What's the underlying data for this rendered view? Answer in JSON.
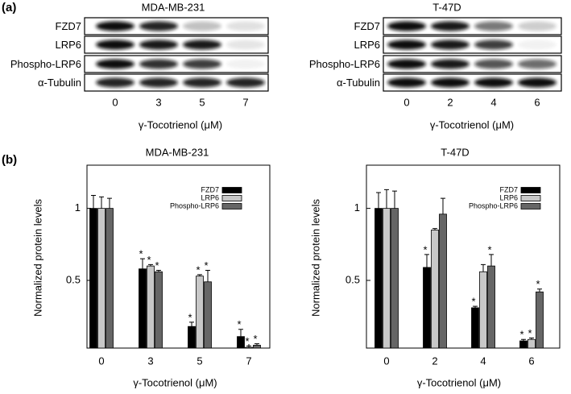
{
  "panel_labels": [
    "(a)",
    "(b)"
  ],
  "blots": [
    {
      "title": "MDA-MB-231",
      "rows": [
        "FZD7",
        "LRP6",
        "Phospho-LRP6",
        "α-Tubulin"
      ],
      "lanes": [
        "0",
        "3",
        "5",
        "7"
      ],
      "xlabel": "γ-Tocotrienol (μM)"
    },
    {
      "title": "T-47D",
      "rows": [
        "FZD7",
        "LRP6",
        "Phospho-LRP6",
        "α-Tubulin"
      ],
      "lanes": [
        "0",
        "2",
        "4",
        "6"
      ],
      "xlabel": "γ-Tocotrienol (μM)"
    }
  ],
  "chart_data": [
    {
      "type": "bar",
      "title": "MDA-MB-231",
      "xlabel": "γ-Tocotrienol (μM)",
      "ylabel": "Normalized protein levels",
      "categories": [
        "0",
        "3",
        "5",
        "7"
      ],
      "ylim": [
        0.03,
        1.3
      ],
      "yticks": [
        0.5,
        1.0
      ],
      "legend": "upper right",
      "series": [
        {
          "name": "FZD7",
          "color": "#000000",
          "values": [
            1.0,
            0.58,
            0.18,
            0.11
          ],
          "errors": [
            0.09,
            0.07,
            0.03,
            0.05
          ],
          "value_labels": [
            null,
            "*",
            "*",
            "*"
          ]
        },
        {
          "name": "LRP6",
          "color": "#c8c8c8",
          "values": [
            1.0,
            0.6,
            0.53,
            0.035
          ],
          "errors": [
            0.08,
            0.01,
            0.01,
            0.01
          ],
          "value_labels": [
            null,
            "*",
            "*",
            "*"
          ]
        },
        {
          "name": "Phospho-LRP6",
          "color": "#666666",
          "values": [
            1.0,
            0.56,
            0.49,
            0.05
          ],
          "errors": [
            0.07,
            0.01,
            0.08,
            0.01
          ],
          "value_labels": [
            null,
            "*",
            "*",
            "*"
          ]
        }
      ]
    },
    {
      "type": "bar",
      "title": "T-47D",
      "xlabel": "γ-Tocotrienol (μM)",
      "ylabel": "Normalized protein levels",
      "categories": [
        "0",
        "2",
        "4",
        "6"
      ],
      "ylim": [
        0.03,
        1.3
      ],
      "yticks": [
        0.5,
        1.0
      ],
      "legend": "upper right",
      "series": [
        {
          "name": "FZD7",
          "color": "#000000",
          "values": [
            1.0,
            0.59,
            0.31,
            0.08
          ],
          "errors": [
            0.11,
            0.09,
            0.01,
            0.01
          ],
          "value_labels": [
            null,
            "*",
            "*",
            "*"
          ]
        },
        {
          "name": "LRP6",
          "color": "#c8c8c8",
          "values": [
            1.0,
            0.85,
            0.56,
            0.09
          ],
          "errors": [
            0.13,
            0.01,
            0.05,
            0.01
          ],
          "value_labels": [
            null,
            null,
            null,
            "*"
          ]
        },
        {
          "name": "Phospho-LRP6",
          "color": "#666666",
          "values": [
            1.0,
            0.96,
            0.6,
            0.42
          ],
          "errors": [
            0.12,
            0.11,
            0.08,
            0.02
          ],
          "value_labels": [
            null,
            null,
            "*",
            "*"
          ]
        }
      ]
    }
  ]
}
